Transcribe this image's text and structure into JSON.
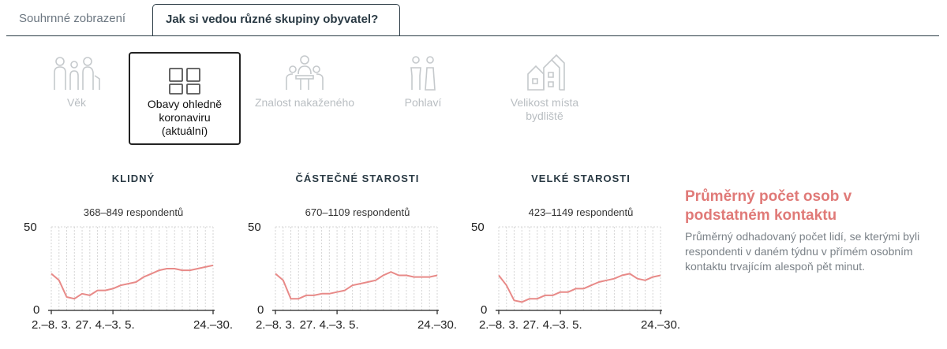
{
  "tabs": [
    {
      "label": "Souhrnné zobrazení",
      "active": false
    },
    {
      "label": "Jak si vedou různé skupiny obyvatel?",
      "active": true
    }
  ],
  "categories": [
    {
      "label": "Věk",
      "icon": "people-ages-icon",
      "selected": false
    },
    {
      "label": "Obavy ohledně koronaviru (aktuální)",
      "icon": "grid-squares-icon",
      "selected": true
    },
    {
      "label": "Znalost nakaženého",
      "icon": "people-meeting-icon",
      "selected": false
    },
    {
      "label": "Pohlaví",
      "icon": "gender-icon",
      "selected": false
    },
    {
      "label": "Velikost místa bydliště",
      "icon": "houses-icon",
      "selected": false
    }
  ],
  "colors": {
    "line": "#e88a88",
    "grid": "#d6d6d6",
    "accent": "#e07a78"
  },
  "chart_data": [
    {
      "type": "line",
      "title": "KLIDNÝ",
      "subtitle": "368–849 respondentů",
      "ylim": [
        0,
        50
      ],
      "yticks": [
        "50",
        "0"
      ],
      "xticks": [
        "2.–8. 3.",
        "27. 4.–3. 5.",
        "24.–30."
      ],
      "values": [
        22,
        18,
        8,
        7,
        10,
        9,
        12,
        12,
        13,
        15,
        16,
        17,
        20,
        22,
        24,
        25,
        25,
        24,
        24,
        25,
        26,
        27
      ]
    },
    {
      "type": "line",
      "title": "ČÁSTEČNÉ STAROSTI",
      "subtitle": "670–1109 respondentů",
      "ylim": [
        0,
        50
      ],
      "yticks": [
        "50",
        "0"
      ],
      "xticks": [
        "2.–8. 3.",
        "27. 4.–3. 5.",
        "24.–30."
      ],
      "values": [
        22,
        18,
        7,
        7,
        9,
        9,
        10,
        10,
        11,
        12,
        15,
        16,
        17,
        18,
        21,
        23,
        21,
        21,
        20,
        20,
        20,
        21
      ]
    },
    {
      "type": "line",
      "title": "VELKÉ STAROSTI",
      "subtitle": "423–1149 respondentů",
      "ylim": [
        0,
        50
      ],
      "yticks": [
        "50",
        "0"
      ],
      "xticks": [
        "2.–8. 3.",
        "27. 4.–3. 5.",
        "24.–30."
      ],
      "values": [
        21,
        15,
        6,
        5,
        7,
        7,
        9,
        9,
        11,
        11,
        13,
        13,
        15,
        17,
        18,
        19,
        21,
        22,
        19,
        18,
        20,
        21
      ]
    }
  ],
  "side": {
    "title": "Průměrný počet osob v podstatném kontaktu",
    "description": "Průměrný odhadovaný počet lidí, se kterými byli respondenti v daném týdnu v přímém osobním kontaktu trvajícím alespoň pět minut."
  }
}
